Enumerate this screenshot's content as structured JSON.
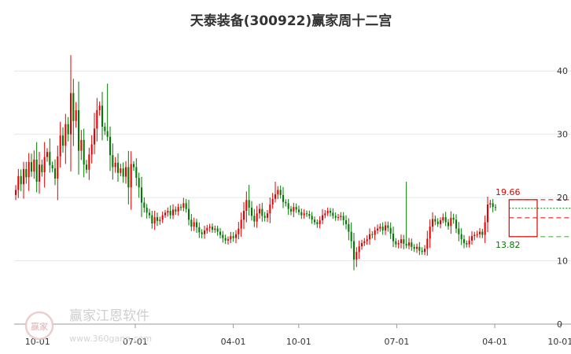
{
  "chart_data": {
    "type": "candlestick",
    "title": "天泰装备(300922)赢家周十二宫",
    "xlabel": "",
    "ylabel": "",
    "y_axis_position": "right",
    "ylim": [
      0,
      45
    ],
    "y_ticks": [
      0,
      10,
      20,
      30,
      40
    ],
    "x_ticks": [
      {
        "label": "10-01",
        "date": "2021-10-01"
      },
      {
        "label": "07-01",
        "date": "2022-07-01"
      },
      {
        "label": "04-01",
        "date": "2023-04-01"
      },
      {
        "label": "10-01",
        "date": "2023-10-01"
      },
      {
        "label": "07-01",
        "date": "2024-07-01"
      },
      {
        "label": "04-01",
        "date": "2025-04-01"
      },
      {
        "label": "10-01",
        "date": "2025-10-01"
      }
    ],
    "grid": "horizontal",
    "up_color": "#e60000",
    "down_color": "#007a00",
    "weekly_closes": [
      21.2,
      23.4,
      22.1,
      24.5,
      23.2,
      25.6,
      24.1,
      26.0,
      22.5,
      25.2,
      24.0,
      26.4,
      27.2,
      25.1,
      24.6,
      23.0,
      26.5,
      29.8,
      28.2,
      31.6,
      30.0,
      36.5,
      32.1,
      33.8,
      27.4,
      29.1,
      25.2,
      24.4,
      26.8,
      28.4,
      30.9,
      33.8,
      34.5,
      31.2,
      30.5,
      29.6,
      26.7,
      24.8,
      25.5,
      23.9,
      24.6,
      23.3,
      24.8,
      21.6,
      25.3,
      24.8,
      23.1,
      21.6,
      19.2,
      18.4,
      17.6,
      17.2,
      15.9,
      16.9,
      16.3,
      16.5,
      17.2,
      17.6,
      17.9,
      17.2,
      18.1,
      17.8,
      18.5,
      18.4,
      19.1,
      18.2,
      16.5,
      15.4,
      16.1,
      15.3,
      14.5,
      14.2,
      14.8,
      15.2,
      15.4,
      14.9,
      15.1,
      14.6,
      14.1,
      13.6,
      13.2,
      13.4,
      13.9,
      13.6,
      14.2,
      15.1,
      16.5,
      17.9,
      19.6,
      18.4,
      17.1,
      16.2,
      17.5,
      18.2,
      17.1,
      16.8,
      17.5,
      18.9,
      19.8,
      20.5,
      21.2,
      20.4,
      19.3,
      19.1,
      18.2,
      17.8,
      18.5,
      18.1,
      17.7,
      17.2,
      17.5,
      17.4,
      17.1,
      16.5,
      16.1,
      15.8,
      16.4,
      17.2,
      17.5,
      17.9,
      17.6,
      17.1,
      16.8,
      16.9,
      17.1,
      16.4,
      15.8,
      14.6,
      13.1,
      10.2,
      11.4,
      12.3,
      12.8,
      13.1,
      13.4,
      14.2,
      14.1,
      14.8,
      15.1,
      15.4,
      14.8,
      15.6,
      15.2,
      14.3,
      13.1,
      12.6,
      12.8,
      13.4,
      12.7,
      12.4,
      12.9,
      12.2,
      11.9,
      12.2,
      11.6,
      11.4,
      11.9,
      13.5,
      15.4,
      16.6,
      16.2,
      15.8,
      16.4,
      16.9,
      16.1,
      15.5,
      16.8,
      16.5,
      15.1,
      14.2,
      13.4,
      12.8,
      12.6,
      13.2,
      13.9,
      14.1,
      14.2,
      14.6,
      14.1,
      16.1,
      18.9,
      19.1,
      18.5,
      18.4
    ],
    "weekly_highs_notable": {
      "21": 42.5,
      "35": 38.0,
      "89": 22.0,
      "99": 22.5,
      "149": 22.5,
      "197": 19.66
    },
    "weekly_lows_notable": {
      "129": 8.5
    },
    "annotations": [
      {
        "text": "19.66",
        "value": 19.66,
        "color": "#e60000"
      },
      {
        "text": "13.82",
        "value": 13.82,
        "color": "#007a00"
      }
    ],
    "reference_lines": [
      {
        "value": 19.66,
        "style": "dashed",
        "color": "#e60000"
      },
      {
        "value": 16.8,
        "style": "dashed",
        "color": "#e60000"
      },
      {
        "value": 18.3,
        "style": "dotted",
        "color": "#007a00"
      },
      {
        "value": 13.82,
        "style": "dashed",
        "color": "#33aa33"
      }
    ],
    "highlight_box": {
      "from": 196,
      "to": 198,
      "low": 13.82,
      "high": 19.66,
      "color": "#e60000"
    }
  },
  "watermark": {
    "logo_text": "赢家",
    "name": "赢家江恩软件",
    "url": "www.360gann.com"
  }
}
